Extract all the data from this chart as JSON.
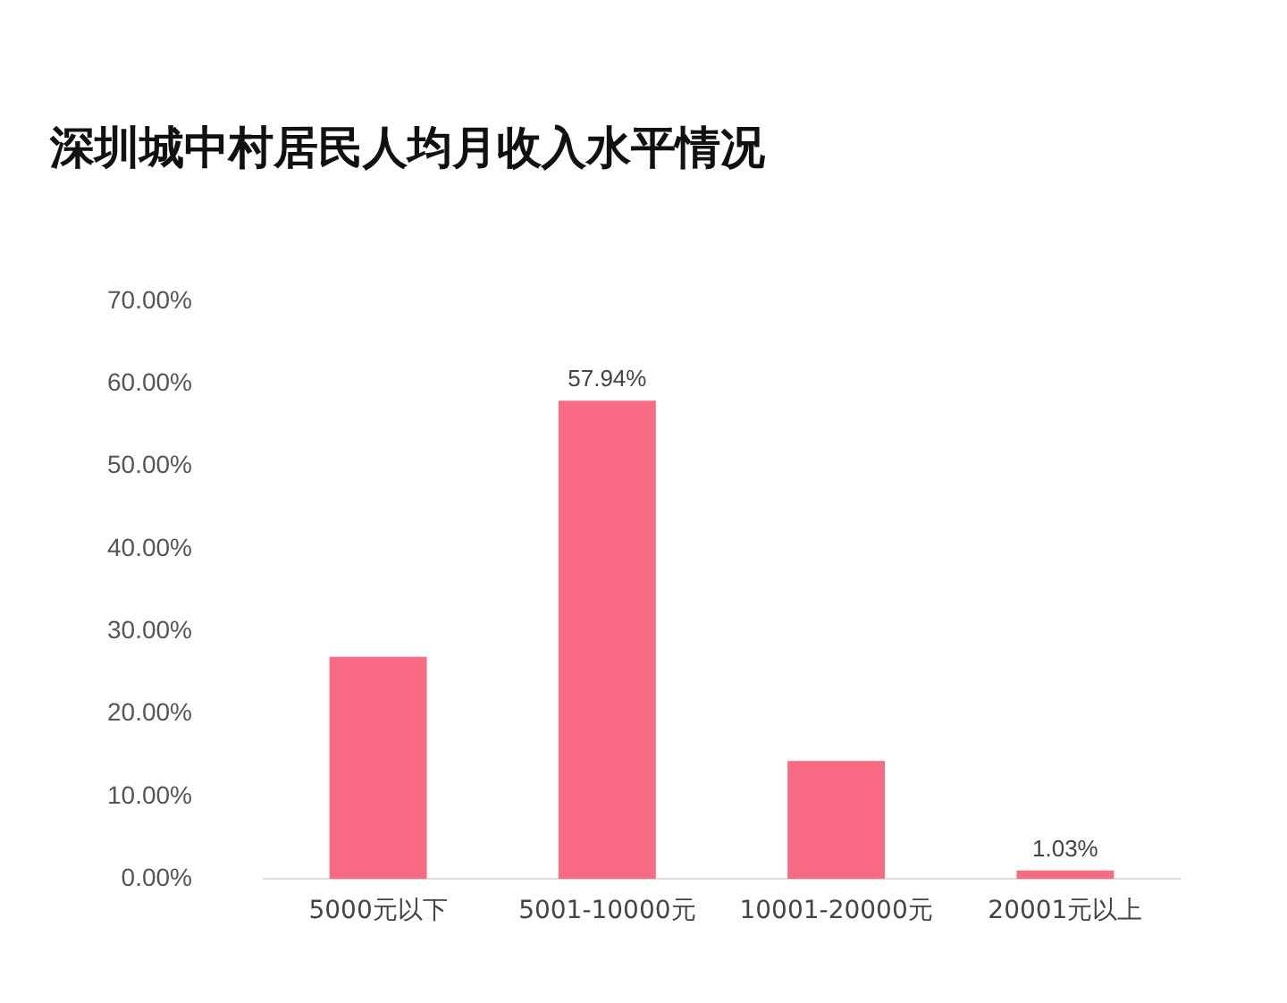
{
  "chart_data": {
    "type": "bar",
    "title": "深圳城中村居民人均月收入水平情况",
    "categories": [
      "5000元以下",
      "5001-10000元",
      "10001-20000元",
      "20001元以上"
    ],
    "values": [
      26.9,
      57.94,
      14.3,
      1.03
    ],
    "value_labels": [
      null,
      "57.94%",
      null,
      "1.03%"
    ],
    "color": "#f96b85",
    "ylim": [
      0,
      70
    ],
    "yticks": [
      {
        "value": 0,
        "label": "0.00%"
      },
      {
        "value": 10,
        "label": "10.00%"
      },
      {
        "value": 20,
        "label": "20.00%"
      },
      {
        "value": 30,
        "label": "30.00%"
      },
      {
        "value": 40,
        "label": "40.00%"
      },
      {
        "value": 50,
        "label": "50.00%"
      },
      {
        "value": 60,
        "label": "60.00%"
      },
      {
        "value": 70,
        "label": "70.00%"
      }
    ],
    "grid": false,
    "legend": false
  }
}
